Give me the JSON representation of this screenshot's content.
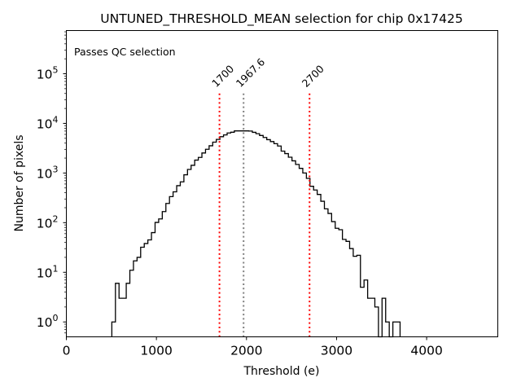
{
  "chart_data": {
    "type": "histogram",
    "title": "UNTUNED_THRESHOLD_MEAN selection for chip 0x17425",
    "xlabel": "Threshold (e)",
    "ylabel": "Number of pixels",
    "xlim": [
      0,
      4790
    ],
    "ylim_log10": [
      -0.3,
      5.87
    ],
    "yscale": "log",
    "grid": false,
    "x_ticks": [
      0,
      1000,
      2000,
      3000,
      4000
    ],
    "x_tick_labels": [
      "0",
      "1000",
      "2000",
      "3000",
      "4000"
    ],
    "y_ticks_exponents": [
      0,
      1,
      2,
      3,
      4,
      5
    ],
    "y_tick_base": "10",
    "bin_start": 505,
    "bin_width": 40,
    "counts": [
      1,
      6,
      3,
      3,
      6,
      11,
      17,
      20,
      32,
      38,
      45,
      63,
      101,
      119,
      167,
      244,
      335,
      418,
      556,
      663,
      921,
      1181,
      1430,
      1820,
      2060,
      2530,
      3010,
      3540,
      4190,
      4760,
      5390,
      5860,
      6400,
      6640,
      7060,
      7060,
      7060,
      7060,
      7000,
      6600,
      6200,
      5700,
      5200,
      4700,
      4300,
      3900,
      3500,
      2760,
      2460,
      2080,
      1760,
      1490,
      1240,
      1000,
      780,
      540,
      455,
      370,
      270,
      190,
      153,
      105,
      77,
      72,
      46,
      42,
      30,
      21,
      22,
      5,
      7,
      3,
      3,
      2,
      0,
      3,
      1,
      0,
      1,
      1
    ],
    "vlines": [
      {
        "x": 1700,
        "label": "1700",
        "color": "#ff0000",
        "style": "dotted"
      },
      {
        "x": 1967.6,
        "label": "1967.6",
        "color": "#808080",
        "style": "dotted"
      },
      {
        "x": 2700,
        "label": "2700",
        "color": "#ff0000",
        "style": "dotted"
      }
    ],
    "vline_top_value": 40000,
    "annotation": {
      "text": "Passes QC selection",
      "color": "#008000",
      "position": "top-left"
    },
    "line_color": "#000000"
  }
}
